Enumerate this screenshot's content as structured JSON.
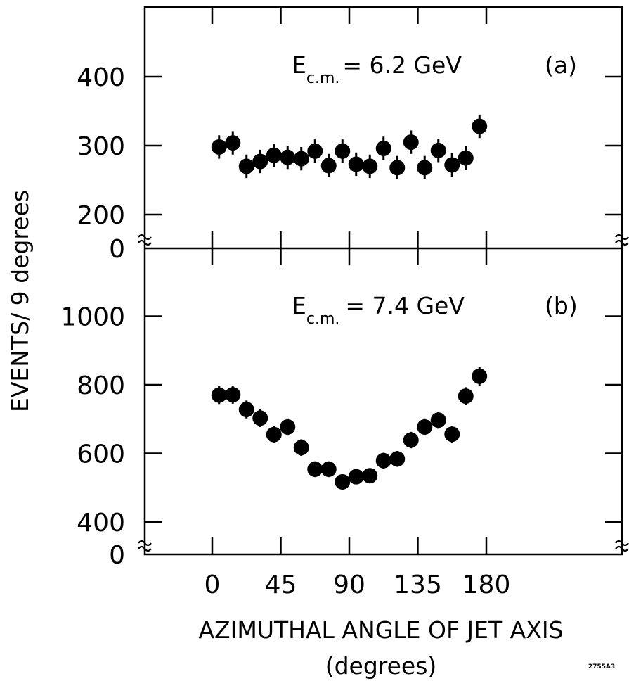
{
  "chart_data": [
    {
      "type": "scatter",
      "panel_label": "(a)",
      "annotation": {
        "prefix": "E",
        "subscript": "c.m.",
        "value": "= 6.2 GeV"
      },
      "ylabel": "EVENTS/ 9 degrees",
      "xlabel": "AZIMUTHAL ANGLE OF JET AXIS",
      "xunit": "(degrees)",
      "xlim": [
        -31.5,
        211.5
      ],
      "xticks": [
        0,
        45,
        90,
        135,
        180
      ],
      "ylim": [
        150,
        500
      ],
      "yticks": [
        200,
        300,
        400
      ],
      "y_zero_label": "0",
      "axis_break": true,
      "x": [
        4.5,
        13.5,
        22.5,
        31.5,
        40.5,
        49.5,
        58.5,
        67.5,
        76.5,
        85.5,
        94.5,
        103.5,
        112.5,
        121.5,
        130.5,
        139.5,
        148.5,
        157.5,
        166.5,
        175.5
      ],
      "y": [
        298,
        304,
        270,
        277,
        286,
        283,
        281,
        292,
        271,
        292,
        273,
        270,
        296,
        268,
        305,
        268,
        293,
        272,
        282,
        328
      ],
      "yerr": [
        17,
        17,
        17,
        17,
        17,
        17,
        17,
        17,
        17,
        17,
        17,
        17,
        17,
        17,
        17,
        17,
        17,
        17,
        17,
        17
      ]
    },
    {
      "type": "scatter",
      "panel_label": "(b)",
      "annotation": {
        "prefix": "E",
        "subscript": "c.m.",
        "value": "= 7.4 GeV"
      },
      "xlim": [
        -31.5,
        211.5
      ],
      "xticks": [
        0,
        45,
        90,
        135,
        180
      ],
      "ylim": [
        300,
        1200
      ],
      "yticks": [
        400,
        600,
        800,
        1000
      ],
      "y_zero_label": "0",
      "axis_break": true,
      "x": [
        4.5,
        13.5,
        22.5,
        31.5,
        40.5,
        49.5,
        58.5,
        67.5,
        76.5,
        85.5,
        94.5,
        103.5,
        112.5,
        121.5,
        130.5,
        139.5,
        148.5,
        157.5,
        166.5,
        175.5
      ],
      "y": [
        770,
        771,
        728,
        703,
        655,
        677,
        617,
        554,
        554,
        517,
        532,
        535,
        579,
        584,
        639,
        677,
        697,
        656,
        767,
        825
      ],
      "yerr": [
        26,
        26,
        26,
        26,
        25,
        25,
        24,
        23,
        23,
        22,
        22,
        22,
        23,
        23,
        24,
        25,
        25,
        25,
        26,
        27
      ]
    }
  ],
  "figure_code": "2755A3"
}
